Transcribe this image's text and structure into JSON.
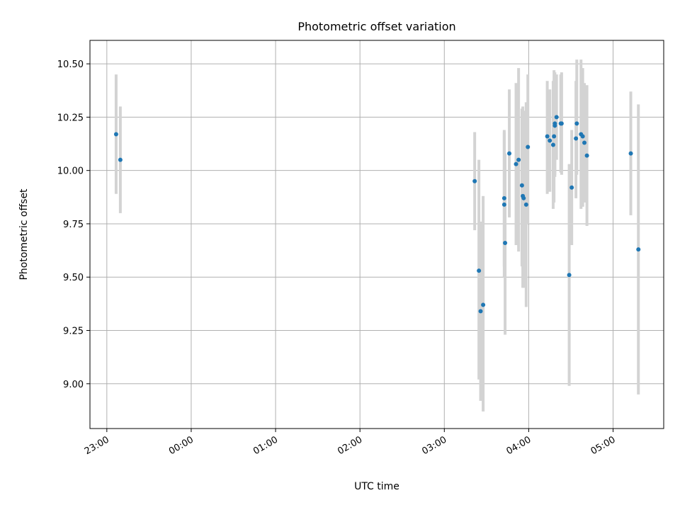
{
  "chart_data": {
    "type": "scatter",
    "title": "Photometric offset variation",
    "xlabel": "UTC time",
    "ylabel": "Photometric offset",
    "grid": true,
    "xlim": [
      -0.2,
      6.6
    ],
    "ylim": [
      8.79,
      10.61
    ],
    "xticks": [
      {
        "value": 0,
        "label": "23:00"
      },
      {
        "value": 1,
        "label": "00:00"
      },
      {
        "value": 2,
        "label": "01:00"
      },
      {
        "value": 3,
        "label": "02:00"
      },
      {
        "value": 4,
        "label": "03:00"
      },
      {
        "value": 5,
        "label": "04:00"
      },
      {
        "value": 6,
        "label": "05:00"
      }
    ],
    "yticks": [
      {
        "value": 9.0,
        "label": "9.00"
      },
      {
        "value": 9.25,
        "label": "9.25"
      },
      {
        "value": 9.5,
        "label": "9.50"
      },
      {
        "value": 9.75,
        "label": "9.75"
      },
      {
        "value": 10.0,
        "label": "10.00"
      },
      {
        "value": 10.25,
        "label": "10.25"
      },
      {
        "value": 10.5,
        "label": "10.50"
      }
    ],
    "series": [
      {
        "name": "offset",
        "color": "#1f77b4",
        "error_color": "#d3d3d3",
        "points": [
          {
            "x": 0.11,
            "y": 10.17,
            "lo": 9.89,
            "hi": 10.45
          },
          {
            "x": 0.16,
            "y": 10.05,
            "lo": 9.8,
            "hi": 10.3
          },
          {
            "x": 4.36,
            "y": 9.95,
            "lo": 9.72,
            "hi": 10.18
          },
          {
            "x": 4.41,
            "y": 9.53,
            "lo": 9.02,
            "hi": 10.05
          },
          {
            "x": 4.43,
            "y": 9.34,
            "lo": 8.92,
            "hi": 9.76
          },
          {
            "x": 4.46,
            "y": 9.37,
            "lo": 8.87,
            "hi": 9.88
          },
          {
            "x": 4.71,
            "y": 9.87,
            "lo": 9.55,
            "hi": 10.19
          },
          {
            "x": 4.71,
            "y": 9.84,
            "lo": 9.5,
            "hi": 10.18
          },
          {
            "x": 4.72,
            "y": 9.66,
            "lo": 9.23,
            "hi": 10.08
          },
          {
            "x": 4.77,
            "y": 10.08,
            "lo": 9.78,
            "hi": 10.38
          },
          {
            "x": 4.85,
            "y": 10.03,
            "lo": 9.65,
            "hi": 10.41
          },
          {
            "x": 4.88,
            "y": 10.05,
            "lo": 9.62,
            "hi": 10.48
          },
          {
            "x": 4.92,
            "y": 9.93,
            "lo": 9.55,
            "hi": 10.29
          },
          {
            "x": 4.93,
            "y": 9.88,
            "lo": 9.45,
            "hi": 10.3
          },
          {
            "x": 4.94,
            "y": 9.87,
            "lo": 9.45,
            "hi": 10.28
          },
          {
            "x": 4.97,
            "y": 9.84,
            "lo": 9.36,
            "hi": 10.32
          },
          {
            "x": 4.99,
            "y": 10.11,
            "lo": 9.75,
            "hi": 10.45
          },
          {
            "x": 5.22,
            "y": 10.16,
            "lo": 9.89,
            "hi": 10.42
          },
          {
            "x": 5.25,
            "y": 10.14,
            "lo": 9.9,
            "hi": 10.38
          },
          {
            "x": 5.29,
            "y": 10.12,
            "lo": 9.82,
            "hi": 10.42
          },
          {
            "x": 5.3,
            "y": 10.16,
            "lo": 9.85,
            "hi": 10.47
          },
          {
            "x": 5.31,
            "y": 10.22,
            "lo": 9.98,
            "hi": 10.46
          },
          {
            "x": 5.31,
            "y": 10.21,
            "lo": 9.97,
            "hi": 10.45
          },
          {
            "x": 5.33,
            "y": 10.25,
            "lo": 10.05,
            "hi": 10.45
          },
          {
            "x": 5.38,
            "y": 10.22,
            "lo": 9.99,
            "hi": 10.45
          },
          {
            "x": 5.39,
            "y": 10.22,
            "lo": 9.98,
            "hi": 10.46
          },
          {
            "x": 5.48,
            "y": 9.51,
            "lo": 8.99,
            "hi": 10.03
          },
          {
            "x": 5.51,
            "y": 9.92,
            "lo": 9.65,
            "hi": 10.19
          },
          {
            "x": 5.56,
            "y": 10.15,
            "lo": 9.87,
            "hi": 10.42
          },
          {
            "x": 5.57,
            "y": 10.22,
            "lo": 9.98,
            "hi": 10.52
          },
          {
            "x": 5.62,
            "y": 10.17,
            "lo": 9.82,
            "hi": 10.52
          },
          {
            "x": 5.64,
            "y": 10.16,
            "lo": 9.83,
            "hi": 10.48
          },
          {
            "x": 5.66,
            "y": 10.13,
            "lo": 9.85,
            "hi": 10.41
          },
          {
            "x": 5.69,
            "y": 10.07,
            "lo": 9.74,
            "hi": 10.4
          },
          {
            "x": 6.21,
            "y": 10.08,
            "lo": 9.79,
            "hi": 10.37
          },
          {
            "x": 6.3,
            "y": 9.63,
            "lo": 8.95,
            "hi": 10.31
          }
        ]
      }
    ]
  }
}
